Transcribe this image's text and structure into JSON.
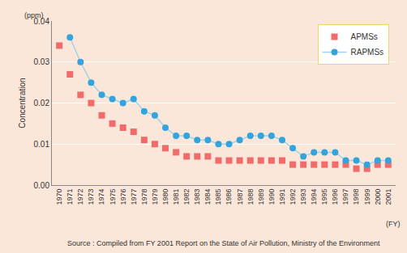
{
  "chart_data": {
    "type": "line",
    "y_label": "Concentration",
    "annotations": [
      "(ppm)",
      "(FY)"
    ],
    "source": "Source : Compiled from FY 2001 Report on the State of Air Pollution, Ministry of the Environment",
    "categories": [
      "1970",
      "1971",
      "1972",
      "1973",
      "1974",
      "1975",
      "1976",
      "1977",
      "1978",
      "1979",
      "1980",
      "1981",
      "1982",
      "1983",
      "1984",
      "1985",
      "1986",
      "1987",
      "1988",
      "1989",
      "1990",
      "1991",
      "1992",
      "1993",
      "1994",
      "1995",
      "1996",
      "1997",
      "1998",
      "1999",
      "2000",
      "2001"
    ],
    "series": [
      {
        "name": "APMSs",
        "color": "#f26b6b",
        "marker": "square",
        "line_style": "none",
        "values": [
          0.034,
          0.027,
          0.022,
          0.02,
          0.017,
          0.015,
          0.014,
          0.013,
          0.011,
          0.01,
          0.009,
          0.008,
          0.007,
          0.007,
          0.007,
          0.006,
          0.006,
          0.006,
          0.006,
          0.006,
          0.006,
          0.006,
          0.005,
          0.005,
          0.005,
          0.005,
          0.005,
          0.005,
          0.004,
          0.004,
          0.005,
          0.005
        ]
      },
      {
        "name": "RAPMSs",
        "color": "#33a4dc",
        "marker": "circle",
        "line_style": "solid",
        "values": [
          null,
          0.036,
          0.03,
          0.025,
          0.022,
          0.021,
          0.02,
          0.021,
          0.018,
          0.017,
          0.014,
          0.012,
          0.012,
          0.011,
          0.011,
          0.01,
          0.01,
          0.011,
          0.012,
          0.012,
          0.012,
          0.011,
          0.009,
          0.007,
          0.008,
          0.008,
          0.008,
          0.006,
          0.006,
          0.005,
          0.006,
          0.006
        ]
      }
    ],
    "ylim": [
      0,
      0.04
    ],
    "yticks": [
      {
        "value": 0,
        "label": "0.00"
      },
      0.01,
      0.02,
      0.03,
      0.04
    ],
    "grid": true,
    "legend": "upper right"
  }
}
